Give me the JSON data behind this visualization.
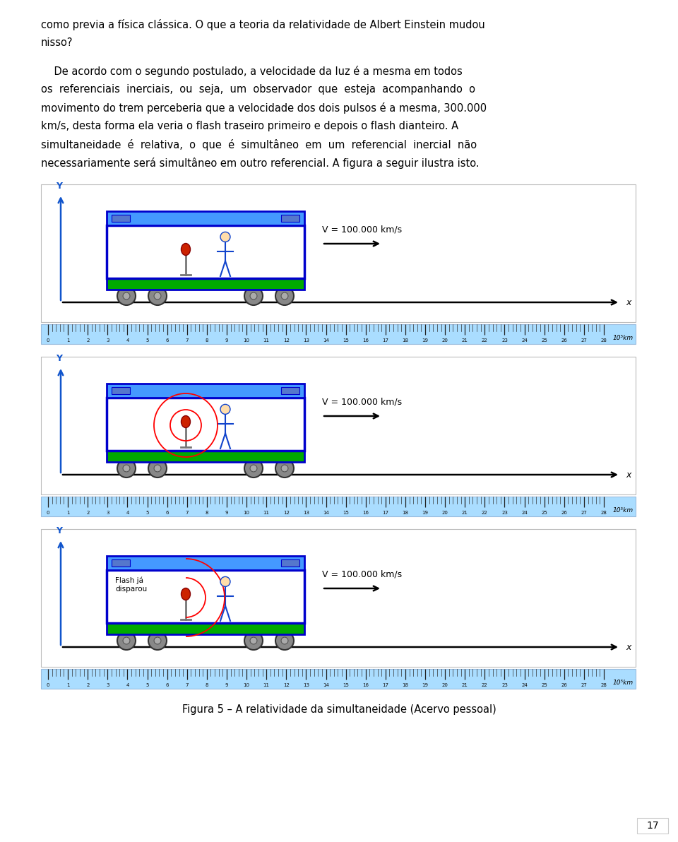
{
  "text_lines_para1": [
    "como previa a física clássica. O que a teoria da relatividade de Albert Einstein mudou",
    "nisso?"
  ],
  "text_lines_para2": [
    "    De acordo com o segundo postulado, a velocidade da luz é a mesma em todos",
    "os  referenciais  inerciais,  ou  seja,  um  observador  que  esteja  acompanhando  o",
    "movimento do trem perceberia que a velocidade dos dois pulsos é a mesma, 300.000",
    "km/s, desta forma ela veria o flash traseiro primeiro e depois o flash dianteiro. A",
    "simultaneidade  é  relativa,  o  que  é  simultâneo  em  um  referencial  inercial  não",
    "necessariamente será simultâneo em outro referencial. A figura a seguir ilustra isto."
  ],
  "caption": "Figura 5 – A relatividade da simultaneidade (Acervo pessoal)",
  "velocity_label": "V = 100.000 km/s",
  "ruler_label": "10⁵km",
  "ruler_ticks": [
    0,
    1,
    2,
    3,
    4,
    5,
    6,
    7,
    8,
    9,
    10,
    11,
    12,
    13,
    14,
    15,
    16,
    17,
    18,
    19,
    20,
    21,
    22,
    23,
    24,
    25,
    26,
    27,
    28
  ],
  "flash_label": "Flash já\ndisparou",
  "page_number": "17",
  "bg_color": "#ffffff",
  "train_border_color": "#0000cc",
  "train_roof_color": "#4499ff",
  "train_base_color": "#00aa00",
  "ruler_bg": "#aaddff",
  "y_axis_color": "#1155cc"
}
